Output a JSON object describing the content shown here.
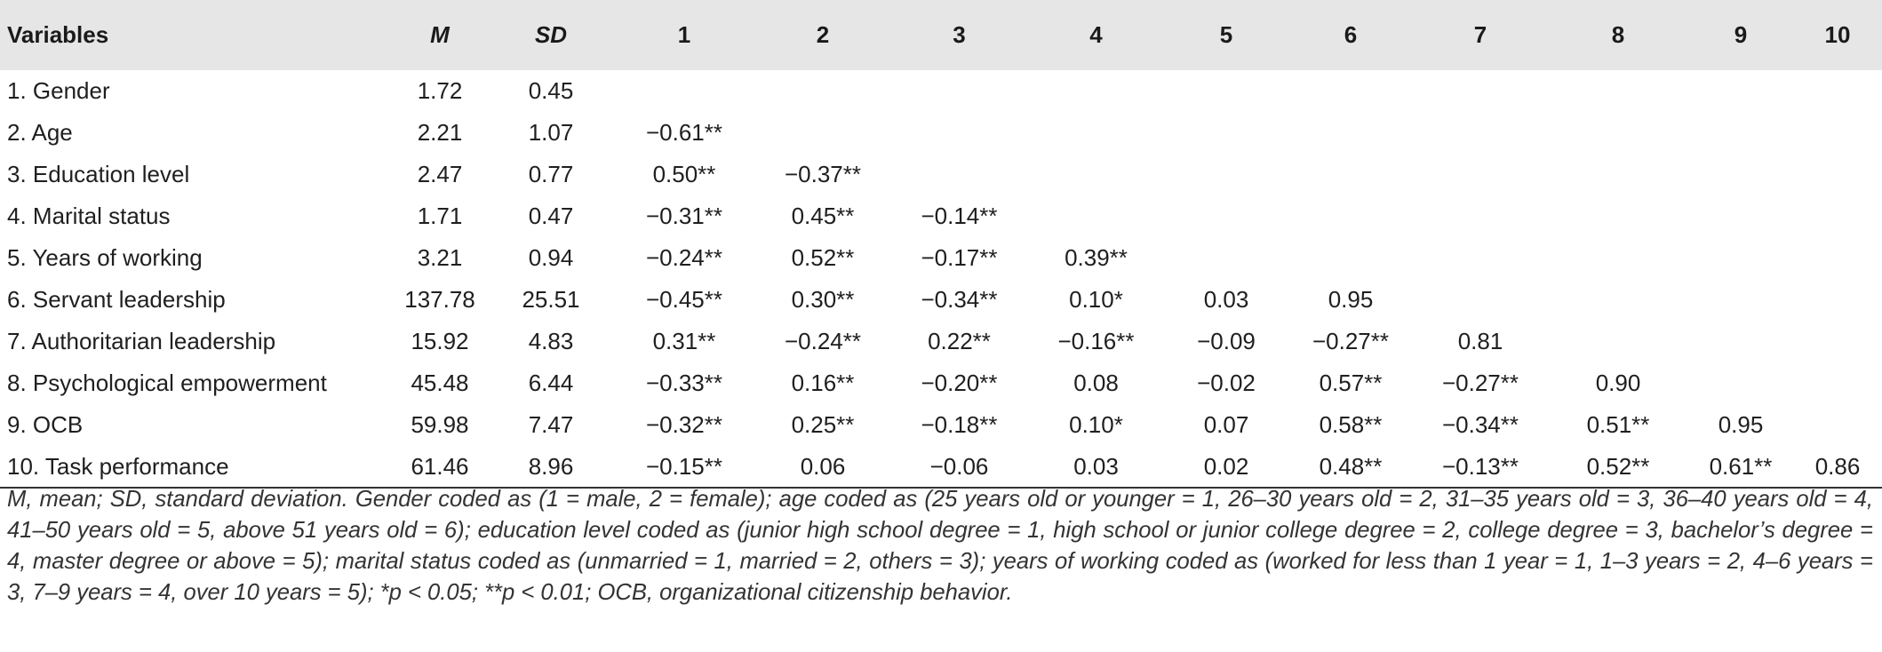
{
  "table": {
    "headers": [
      "Variables",
      "M",
      "SD",
      "1",
      "2",
      "3",
      "4",
      "5",
      "6",
      "7",
      "8",
      "9",
      "10"
    ],
    "rows": [
      [
        "1. Gender",
        "1.72",
        "0.45",
        "",
        "",
        "",
        "",
        "",
        "",
        "",
        "",
        "",
        ""
      ],
      [
        "2. Age",
        "2.21",
        "1.07",
        "−0.61**",
        "",
        "",
        "",
        "",
        "",
        "",
        "",
        "",
        ""
      ],
      [
        "3. Education level",
        "2.47",
        "0.77",
        "0.50**",
        "−0.37**",
        "",
        "",
        "",
        "",
        "",
        "",
        "",
        ""
      ],
      [
        "4. Marital status",
        "1.71",
        "0.47",
        "−0.31**",
        "0.45**",
        "−0.14**",
        "",
        "",
        "",
        "",
        "",
        "",
        ""
      ],
      [
        "5. Years of working",
        "3.21",
        "0.94",
        "−0.24**",
        "0.52**",
        "−0.17**",
        "0.39**",
        "",
        "",
        "",
        "",
        "",
        ""
      ],
      [
        "6. Servant leadership",
        "137.78",
        "25.51",
        "−0.45**",
        "0.30**",
        "−0.34**",
        "0.10*",
        "0.03",
        "0.95",
        "",
        "",
        "",
        ""
      ],
      [
        "7. Authoritarian leadership",
        "15.92",
        "4.83",
        "0.31**",
        "−0.24**",
        "0.22**",
        "−0.16**",
        "−0.09",
        "−0.27**",
        "0.81",
        "",
        "",
        ""
      ],
      [
        "8. Psychological empowerment",
        "45.48",
        "6.44",
        "−0.33**",
        "0.16**",
        "−0.20**",
        "0.08",
        "−0.02",
        "0.57**",
        "−0.27**",
        "0.90",
        "",
        ""
      ],
      [
        "9. OCB",
        "59.98",
        "7.47",
        "−0.32**",
        "0.25**",
        "−0.18**",
        "0.10*",
        "0.07",
        "0.58**",
        "−0.34**",
        "0.51**",
        "0.95",
        ""
      ],
      [
        "10. Task performance",
        "61.46",
        "8.96",
        "−0.15**",
        "0.06",
        "−0.06",
        "0.03",
        "0.02",
        "0.48**",
        "−0.13**",
        "0.52**",
        "0.61**",
        "0.86"
      ]
    ]
  },
  "note": "M, mean; SD, standard deviation. Gender coded as (1 = male, 2 = female); age coded as (25 years old or younger = 1, 26–30 years old = 2, 31–35 years old = 3, 36–40 years old = 4, 41–50 years old = 5, above 51 years old = 6); education level coded as (junior high school degree = 1, high school or junior college degree = 2, college degree = 3, bachelor’s degree = 4, master degree or above = 5); marital status coded as (unmarried = 1, married = 2, others = 3); years of working coded as (worked for less than 1 year = 1, 1–3 years = 2, 4–6 years = 3, 7–9 years = 4, over 10 years = 5); *p < 0.05; **p < 0.01; OCB, organizational citizenship behavior."
}
